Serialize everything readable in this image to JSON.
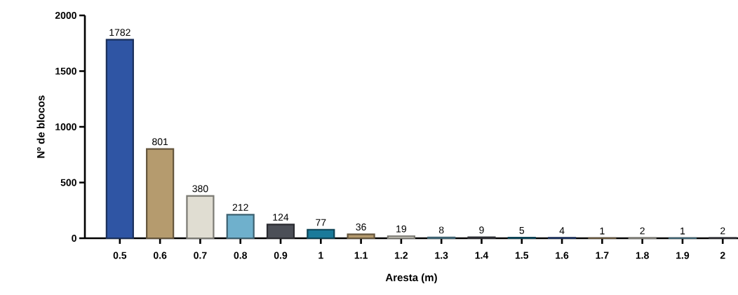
{
  "chart_data": {
    "type": "bar",
    "xlabel": "Aresta (m)",
    "ylabel": "Nº de blocos",
    "categories": [
      "0.5",
      "0.6",
      "0.7",
      "0.8",
      "0.9",
      "1",
      "1.1",
      "1.2",
      "1.3",
      "1.4",
      "1.5",
      "1.6",
      "1.7",
      "1.8",
      "1.9",
      "2"
    ],
    "values": [
      1782,
      801,
      380,
      212,
      124,
      77,
      36,
      19,
      8,
      9,
      5,
      4,
      1,
      2,
      1,
      2
    ],
    "colors": [
      "#2f55a4",
      "#b59b6e",
      "#e0ddd2",
      "#6fb0cc",
      "#4c4f57",
      "#1a7a9a",
      "#b59b6e",
      "#e0ddd2",
      "#6fb0cc",
      "#4c4f57",
      "#1a7a9a",
      "#2f55a4",
      "#b59b6e",
      "#e0ddd2",
      "#6fb0cc",
      "#4c4f57"
    ],
    "ylim": [
      0,
      2000
    ],
    "yticks": [
      0,
      500,
      1000,
      1500,
      2000
    ],
    "data_labels": true,
    "grid": false
  }
}
